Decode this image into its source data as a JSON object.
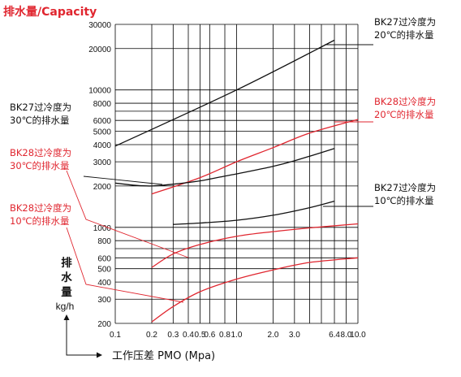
{
  "colors": {
    "black": "#111111",
    "red": "#e0262f",
    "grid": "#000000"
  },
  "chart_data": {
    "type": "line",
    "title": "排水量/Capacity",
    "xlabel": "工作压差 PMO (Mpa)",
    "ylabel": [
      "排",
      "水",
      "量",
      "kg/h"
    ],
    "x_scale": "log",
    "y_scale": "log",
    "xlim": [
      0.1,
      10.0
    ],
    "ylim": [
      200,
      30000
    ],
    "x_tick_labels": [
      {
        "v": 0.1,
        "t": "0.1"
      },
      {
        "v": 0.2,
        "t": "0.2"
      },
      {
        "v": 0.3,
        "t": "0.3"
      },
      {
        "v": 0.4,
        "t": "0.4"
      },
      {
        "v": 0.5,
        "t": "0.5"
      },
      {
        "v": 0.6,
        "t": "0.6"
      },
      {
        "v": 0.8,
        "t": "0.8"
      },
      {
        "v": 1.0,
        "t": "1.0"
      },
      {
        "v": 2.0,
        "t": "2.0"
      },
      {
        "v": 3.0,
        "t": "3.0"
      },
      {
        "v": 6.4,
        "t": "6.4"
      },
      {
        "v": 8.0,
        "t": "8.0"
      },
      {
        "v": 10.0,
        "t": "10.0"
      }
    ],
    "y_tick_labels": [
      {
        "v": 200,
        "t": "200"
      },
      {
        "v": 300,
        "t": "300"
      },
      {
        "v": 400,
        "t": "400"
      },
      {
        "v": 500,
        "t": "500"
      },
      {
        "v": 600,
        "t": "600"
      },
      {
        "v": 800,
        "t": "800"
      },
      {
        "v": 1000,
        "t": "1000"
      },
      {
        "v": 2000,
        "t": "2000"
      },
      {
        "v": 3000,
        "t": "3000"
      },
      {
        "v": 4000,
        "t": "4000"
      },
      {
        "v": 5000,
        "t": "5000"
      },
      {
        "v": 6000,
        "t": "6000"
      },
      {
        "v": 8000,
        "t": "8000"
      },
      {
        "v": 10000,
        "t": "10000"
      },
      {
        "v": 20000,
        "t": "20000"
      },
      {
        "v": 30000,
        "t": "30000"
      }
    ],
    "grid": true,
    "series": [
      {
        "name": "BK27过冷度为20℃的排水量",
        "color": "#111111",
        "x": [
          0.1,
          1.0,
          6.4
        ],
        "y": [
          3900,
          10000,
          23000
        ]
      },
      {
        "name": "BK28过冷度为20℃的排水量",
        "color": "#e0262f",
        "x": [
          0.2,
          0.5,
          1.0,
          2.0,
          4.0,
          10.0
        ],
        "y": [
          1750,
          2300,
          3000,
          3800,
          4850,
          6100
        ]
      },
      {
        "name": "BK27过冷度为30℃的排水量",
        "color": "#111111",
        "x": [
          0.1,
          0.15,
          0.2,
          0.3,
          0.5,
          0.8,
          1.0,
          2.0,
          3.0,
          6.4
        ],
        "y": [
          2100,
          2020,
          2000,
          2060,
          2180,
          2360,
          2450,
          2780,
          3050,
          3750
        ]
      },
      {
        "name": "BK27过冷度为10℃的排水量",
        "color": "#111111",
        "x": [
          0.3,
          0.5,
          1.0,
          2.0,
          4.0,
          6.4
        ],
        "y": [
          1050,
          1075,
          1125,
          1225,
          1390,
          1550
        ]
      },
      {
        "name": "BK28过冷度为30℃的排水量",
        "color": "#e0262f",
        "x": [
          0.2,
          0.3,
          0.5,
          1.0,
          2.0,
          4.0,
          10.0
        ],
        "y": [
          510,
          640,
          750,
          860,
          930,
          990,
          1060
        ]
      },
      {
        "name": "BK28过冷度为10℃的排水量",
        "color": "#e0262f",
        "x": [
          0.2,
          0.3,
          0.5,
          1.0,
          2.0,
          4.0,
          10.0
        ],
        "y": [
          205,
          265,
          340,
          420,
          490,
          555,
          600
        ]
      }
    ],
    "annotations": [
      {
        "series": 0,
        "lines": [
          "BK27过冷度为",
          "20℃的排水量"
        ],
        "color": "#111111"
      },
      {
        "series": 1,
        "lines": [
          "BK28过冷度为",
          "20℃的排水量"
        ],
        "color": "#e0262f"
      },
      {
        "series": 2,
        "lines": [
          "BK27过冷度为",
          "30℃的排水量"
        ],
        "color": "#111111"
      },
      {
        "series": 3,
        "lines": [
          "BK27过冷度为",
          "10℃的排水量"
        ],
        "color": "#111111"
      },
      {
        "series": 4,
        "lines": [
          "BK28过冷度为",
          "30℃的排水量"
        ],
        "color": "#e0262f"
      },
      {
        "series": 5,
        "lines": [
          "BK28过冷度为",
          "10℃的排水量"
        ],
        "color": "#e0262f"
      }
    ]
  }
}
